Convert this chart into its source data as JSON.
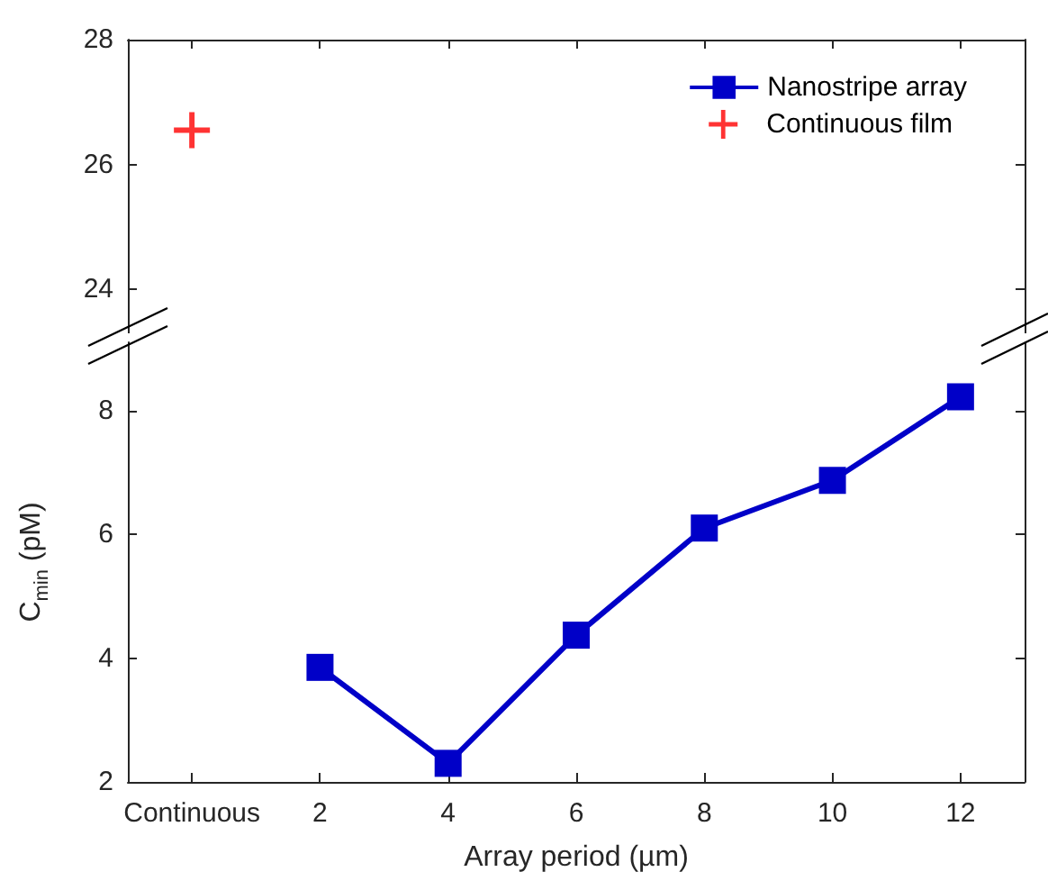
{
  "chart_data": [
    {
      "type": "scatter",
      "categories": [
        "Continuous",
        "2",
        "4",
        "6",
        "8",
        "10",
        "12"
      ],
      "ylim": [
        23.3,
        28
      ],
      "yticks": [
        24,
        26,
        28
      ],
      "tick_labels": "y",
      "grid": false,
      "legend": "top right",
      "marker": "cross",
      "series": [
        {
          "name": "Continuous film",
          "color": "#ff0000",
          "x": [
            "Continuous"
          ],
          "values": [
            26.55
          ]
        }
      ]
    },
    {
      "type": "line",
      "categories": [
        "Continuous",
        "2",
        "4",
        "6",
        "8",
        "10",
        "12"
      ],
      "ylim": [
        2,
        9.1
      ],
      "yticks": [
        2,
        4,
        6,
        8
      ],
      "grid": false,
      "legend": "top right",
      "marker": "square",
      "line_style": "solid",
      "xlabel": "Array period (µm)",
      "ylabel": "C$_{min}$ (pM)",
      "series": [
        {
          "name": "Nanostripe array",
          "color": "#0000c8",
          "values": [
            null,
            3.85,
            2.3,
            4.37,
            6.1,
            6.87,
            8.22
          ]
        }
      ]
    }
  ]
}
